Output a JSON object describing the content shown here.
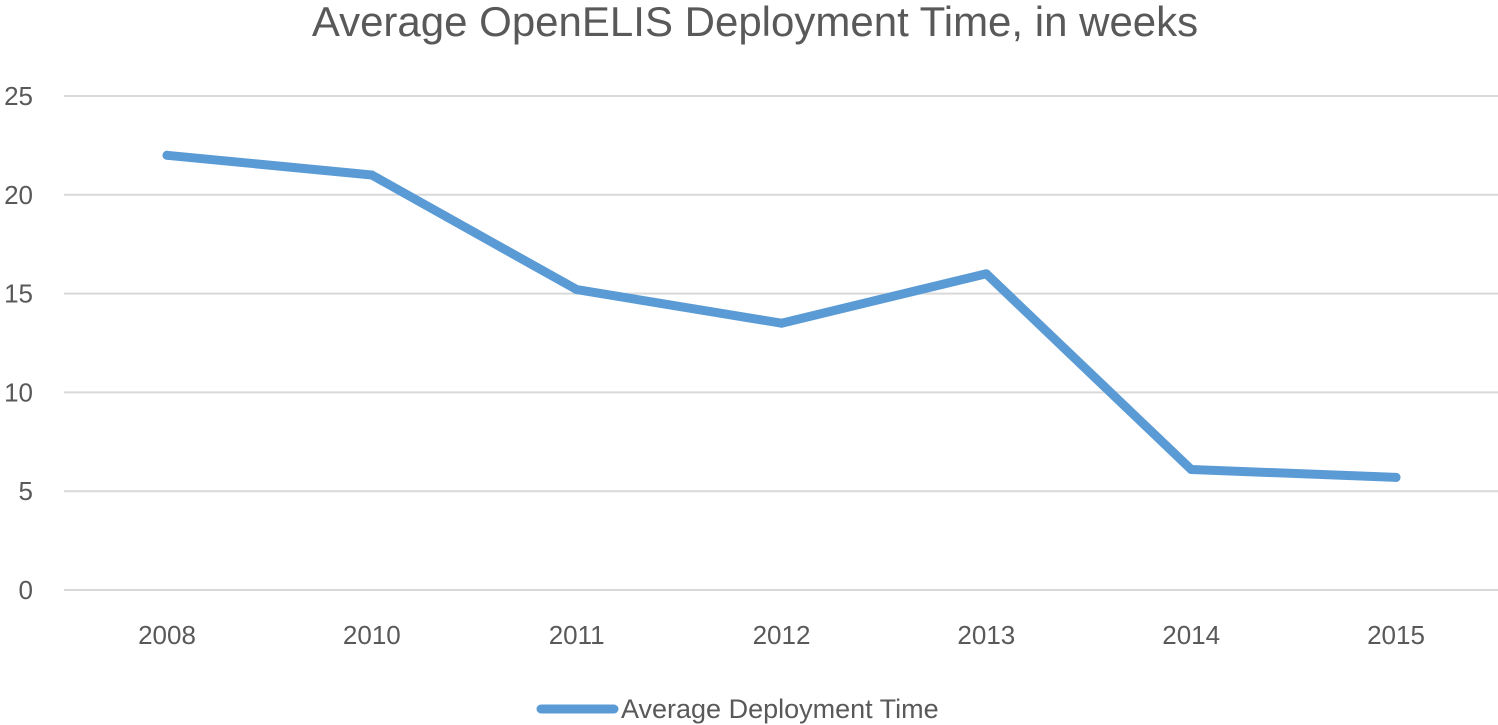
{
  "chart_data": {
    "type": "line",
    "title": "Average OpenELIS Deployment Time, in weeks",
    "xlabel": "",
    "ylabel": "",
    "categories": [
      "2008",
      "2010",
      "2011",
      "2012",
      "2013",
      "2014",
      "2015"
    ],
    "series": [
      {
        "name": "Average Deployment Time",
        "values": [
          22,
          21,
          15.2,
          13.5,
          16,
          6.1,
          5.7
        ],
        "color": "#5b9bd5"
      }
    ],
    "ylim": [
      0,
      25
    ],
    "yticks": [
      "0",
      "5",
      "10",
      "15",
      "20",
      "25"
    ],
    "grid": true,
    "legend_position": "bottom"
  }
}
